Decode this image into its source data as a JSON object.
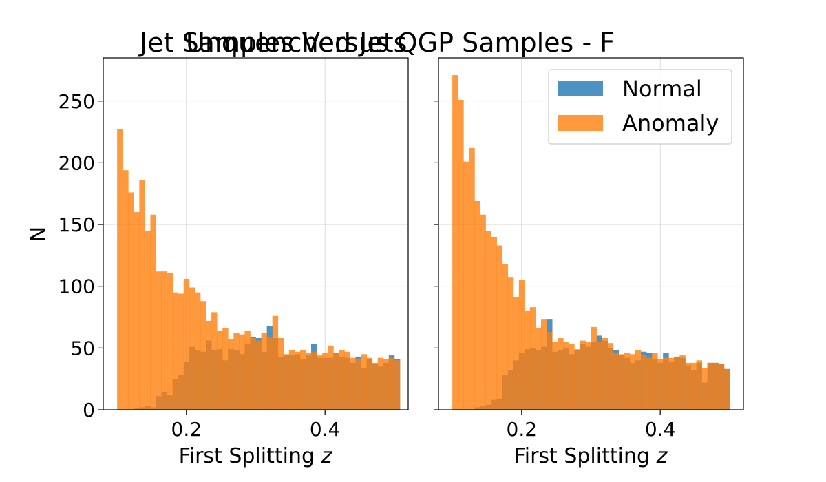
{
  "figure": {
    "titles": [
      "Unquenched Jets",
      "Jet Samples Versus QGP Samples  - F"
    ]
  },
  "chart_data": [
    {
      "type": "bar",
      "xlabel": "First Splitting z",
      "ylabel": "N",
      "xlim": [
        0.08,
        0.52
      ],
      "ylim": [
        0,
        285
      ],
      "xticks": [
        0.2,
        0.4
      ],
      "xtick_labels": [
        "0.2",
        "0.4"
      ],
      "yticks": [
        0,
        50,
        100,
        150,
        200,
        250
      ],
      "ytick_labels": [
        "0",
        "50",
        "100",
        "150",
        "200",
        "250"
      ],
      "grid": true,
      "bin_start": 0.1,
      "bin_width": 0.008,
      "series": [
        {
          "name": "Normal",
          "color": "#1f77b4",
          "values": [
            0,
            0,
            0,
            1,
            2,
            3,
            2,
            11,
            14,
            12,
            25,
            28,
            39,
            51,
            48,
            47,
            56,
            48,
            49,
            40,
            49,
            48,
            45,
            53,
            59,
            58,
            47,
            68,
            58,
            43,
            44,
            44,
            45,
            41,
            44,
            53,
            42,
            42,
            42,
            46,
            43,
            42,
            38,
            43,
            34,
            41,
            37,
            35,
            38,
            44,
            41
          ]
        },
        {
          "name": "Anomaly",
          "color": "#ff7f0e",
          "values": [
            227,
            194,
            176,
            160,
            186,
            145,
            158,
            112,
            112,
            111,
            95,
            94,
            106,
            99,
            95,
            88,
            72,
            79,
            64,
            66,
            57,
            62,
            61,
            64,
            58,
            56,
            62,
            59,
            76,
            58,
            45,
            48,
            47,
            48,
            46,
            47,
            44,
            46,
            52,
            46,
            48,
            47,
            42,
            41,
            45,
            42,
            38,
            42,
            41,
            42,
            40
          ]
        }
      ]
    },
    {
      "type": "bar",
      "xlabel": "First Splitting z",
      "xlim": [
        0.08,
        0.52
      ],
      "ylim": [
        0,
        285
      ],
      "xticks": [
        0.2,
        0.4
      ],
      "xtick_labels": [
        "0.2",
        "0.4"
      ],
      "yticks": [
        0,
        50,
        100,
        150,
        200,
        250
      ],
      "grid": true,
      "legend": "top-right",
      "bin_start": 0.1,
      "bin_width": 0.008,
      "series": [
        {
          "name": "Normal",
          "color": "#1f77b4",
          "values": [
            0,
            0,
            0,
            0,
            2,
            3,
            4,
            8,
            9,
            28,
            32,
            40,
            46,
            49,
            50,
            48,
            51,
            73,
            47,
            48,
            50,
            45,
            48,
            53,
            51,
            55,
            60,
            56,
            50,
            48,
            44,
            42,
            38,
            40,
            47,
            46,
            41,
            38,
            46,
            39,
            43,
            42,
            36,
            32,
            38,
            22,
            38,
            38,
            37,
            33,
            0
          ]
        },
        {
          "name": "Anomaly",
          "color": "#ff7f0e",
          "values": [
            271,
            251,
            201,
            212,
            169,
            158,
            145,
            140,
            133,
            118,
            107,
            91,
            105,
            80,
            83,
            66,
            73,
            63,
            55,
            58,
            55,
            53,
            49,
            56,
            55,
            67,
            55,
            58,
            54,
            46,
            45,
            46,
            45,
            48,
            44,
            42,
            46,
            41,
            42,
            42,
            43,
            44,
            38,
            38,
            40,
            34,
            38,
            38,
            37,
            33,
            0
          ]
        }
      ],
      "legend_entries": [
        "Normal",
        "Anomaly"
      ]
    }
  ]
}
